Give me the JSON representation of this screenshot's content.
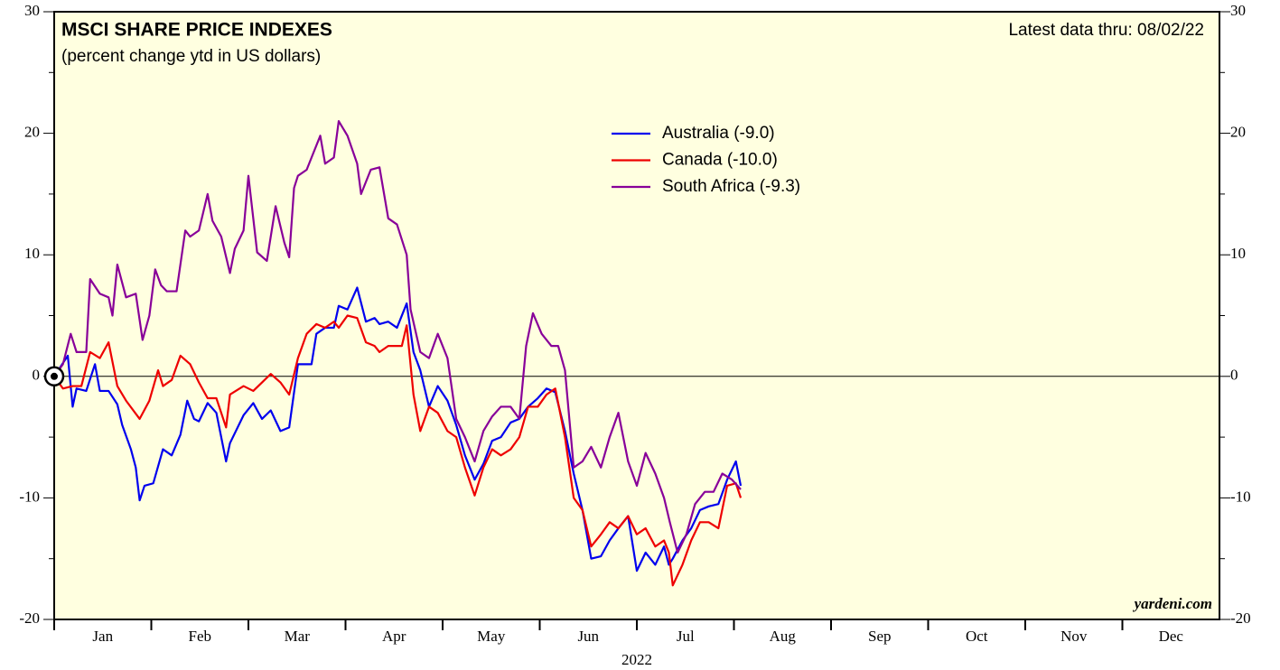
{
  "chart_data": {
    "type": "line",
    "title": "MSCI SHARE PRICE INDEXES",
    "subtitle": "(percent change ytd in US dollars)",
    "annotation": "Latest data thru: 08/02/22",
    "source": "yardeni.com",
    "x_label": "2022",
    "categories": [
      "Jan",
      "Feb",
      "Mar",
      "Apr",
      "May",
      "Jun",
      "Jul",
      "Aug",
      "Sep",
      "Oct",
      "Nov",
      "Dec"
    ],
    "xlim": [
      0,
      12
    ],
    "ylim": [
      -20,
      30
    ],
    "yticks": [
      -20,
      -10,
      0,
      10,
      20,
      30
    ],
    "yminor_ticks": [
      -15,
      -5,
      5,
      15,
      25
    ],
    "reference_line": 0,
    "series": [
      {
        "name": "Australia (-9.0)",
        "color": "#0000ee",
        "x": [
          0,
          0.14,
          0.19,
          0.23,
          0.33,
          0.42,
          0.47,
          0.56,
          0.65,
          0.7,
          0.79,
          0.84,
          0.88,
          0.93,
          1.02,
          1.12,
          1.21,
          1.3,
          1.37,
          1.44,
          1.49,
          1.58,
          1.67,
          1.77,
          1.81,
          1.95,
          2.05,
          2.14,
          2.23,
          2.33,
          2.42,
          2.51,
          2.65,
          2.7,
          2.79,
          2.88,
          2.93,
          3.02,
          3.12,
          3.21,
          3.3,
          3.35,
          3.44,
          3.53,
          3.63,
          3.7,
          3.77,
          3.86,
          3.95,
          4.05,
          4.14,
          4.23,
          4.33,
          4.42,
          4.51,
          4.6,
          4.7,
          4.79,
          4.88,
          4.98,
          5.07,
          5.16,
          5.26,
          5.35,
          5.44,
          5.53,
          5.63,
          5.72,
          5.81,
          5.91,
          6.0,
          6.09,
          6.19,
          6.28,
          6.33,
          6.37,
          6.47,
          6.56,
          6.65,
          6.74,
          6.84,
          6.93,
          7.02,
          7.07
        ],
        "values": [
          0,
          1.7,
          -2.5,
          -1,
          -1.2,
          1,
          -1.2,
          -1.2,
          -2.3,
          -4,
          -6,
          -7.5,
          -10.2,
          -9,
          -8.8,
          -6,
          -6.5,
          -4.8,
          -2,
          -3.5,
          -3.7,
          -2.2,
          -3,
          -7,
          -5.5,
          -3.2,
          -2.2,
          -3.5,
          -2.8,
          -4.5,
          -4.2,
          1,
          1,
          3.5,
          4,
          4,
          5.8,
          5.5,
          7.3,
          4.5,
          4.8,
          4.3,
          4.5,
          4,
          6,
          2,
          0.5,
          -2.5,
          -0.8,
          -2,
          -4,
          -6.5,
          -8.5,
          -7.2,
          -5.3,
          -5,
          -3.8,
          -3.5,
          -2.5,
          -1.8,
          -1,
          -1.3,
          -4.5,
          -8,
          -11,
          -15,
          -14.8,
          -13.5,
          -12.5,
          -11.5,
          -16,
          -14.5,
          -15.5,
          -14,
          -15.5,
          -15,
          -13.5,
          -12.5,
          -11,
          -10.7,
          -10.5,
          -8.5,
          -7,
          -9.0
        ]
      },
      {
        "name": "Canada (-10.0)",
        "color": "#ee0000",
        "x": [
          0,
          0.09,
          0.19,
          0.28,
          0.37,
          0.47,
          0.56,
          0.65,
          0.74,
          0.88,
          0.98,
          1.07,
          1.12,
          1.21,
          1.3,
          1.4,
          1.49,
          1.58,
          1.67,
          1.77,
          1.81,
          1.95,
          2.05,
          2.14,
          2.23,
          2.33,
          2.42,
          2.51,
          2.6,
          2.7,
          2.79,
          2.88,
          2.93,
          3.02,
          3.12,
          3.21,
          3.3,
          3.35,
          3.44,
          3.58,
          3.63,
          3.7,
          3.77,
          3.86,
          3.95,
          4.05,
          4.14,
          4.23,
          4.33,
          4.42,
          4.51,
          4.6,
          4.7,
          4.79,
          4.88,
          4.98,
          5.07,
          5.16,
          5.26,
          5.35,
          5.44,
          5.53,
          5.63,
          5.72,
          5.81,
          5.91,
          6.0,
          6.09,
          6.19,
          6.28,
          6.33,
          6.37,
          6.47,
          6.56,
          6.65,
          6.74,
          6.84,
          6.93,
          7.02,
          7.07
        ],
        "values": [
          0,
          -1,
          -0.8,
          -0.8,
          2,
          1.5,
          2.8,
          -0.8,
          -2,
          -3.5,
          -2,
          0.5,
          -0.8,
          -0.3,
          1.7,
          1,
          -0.5,
          -1.8,
          -1.8,
          -4.2,
          -1.5,
          -0.8,
          -1.2,
          -0.5,
          0.2,
          -0.5,
          -1.5,
          1.5,
          3.5,
          4.3,
          4,
          4.5,
          4,
          5,
          4.8,
          2.8,
          2.5,
          2,
          2.5,
          2.5,
          4.2,
          -1.5,
          -4.5,
          -2.5,
          -3,
          -4.5,
          -5,
          -7.5,
          -9.8,
          -7.5,
          -6,
          -6.5,
          -6,
          -5,
          -2.5,
          -2.5,
          -1.5,
          -1,
          -5,
          -10,
          -11,
          -14,
          -13,
          -12,
          -12.5,
          -11.5,
          -13,
          -12.5,
          -14,
          -13.5,
          -14.5,
          -17.2,
          -15.5,
          -13.5,
          -12,
          -12,
          -12.5,
          -9,
          -8.8,
          -10.0
        ]
      },
      {
        "name": "South Africa (-9.3)",
        "color": "#880099",
        "x": [
          0,
          0.09,
          0.17,
          0.23,
          0.33,
          0.37,
          0.47,
          0.56,
          0.6,
          0.65,
          0.74,
          0.84,
          0.91,
          0.98,
          1.04,
          1.1,
          1.16,
          1.26,
          1.35,
          1.4,
          1.49,
          1.58,
          1.63,
          1.72,
          1.81,
          1.86,
          1.95,
          2.0,
          2.09,
          2.19,
          2.28,
          2.37,
          2.42,
          2.47,
          2.51,
          2.6,
          2.65,
          2.74,
          2.79,
          2.88,
          2.93,
          3.02,
          3.12,
          3.16,
          3.26,
          3.35,
          3.44,
          3.53,
          3.63,
          3.67,
          3.77,
          3.86,
          3.95,
          4.05,
          4.14,
          4.23,
          4.33,
          4.42,
          4.51,
          4.6,
          4.7,
          4.79,
          4.86,
          4.93,
          5.02,
          5.12,
          5.19,
          5.26,
          5.35,
          5.44,
          5.53,
          5.63,
          5.72,
          5.81,
          5.91,
          6.0,
          6.09,
          6.19,
          6.28,
          6.34,
          6.42,
          6.51,
          6.6,
          6.7,
          6.79,
          6.88,
          6.98,
          7.07
        ],
        "values": [
          0,
          1,
          3.5,
          2,
          2,
          8,
          6.8,
          6.5,
          5,
          9.2,
          6.5,
          6.8,
          3,
          5,
          8.8,
          7.5,
          7,
          7,
          12,
          11.5,
          12,
          15,
          12.8,
          11.5,
          8.5,
          10.5,
          12,
          16.5,
          10.2,
          9.5,
          14,
          11,
          9.8,
          15.5,
          16.5,
          17,
          18,
          19.8,
          17.5,
          18,
          21,
          19.8,
          17.5,
          15,
          17,
          17.2,
          13,
          12.5,
          10,
          5.5,
          2,
          1.5,
          3.5,
          1.5,
          -3.5,
          -5,
          -7,
          -4.5,
          -3.3,
          -2.5,
          -2.5,
          -3.5,
          2.5,
          5.2,
          3.5,
          2.5,
          2.5,
          0.5,
          -7.5,
          -7,
          -5.8,
          -7.5,
          -5,
          -3,
          -7,
          -9,
          -6.3,
          -8,
          -10,
          -12,
          -14.5,
          -13,
          -10.5,
          -9.5,
          -9.5,
          -8,
          -8.5,
          -9.3
        ]
      }
    ]
  }
}
